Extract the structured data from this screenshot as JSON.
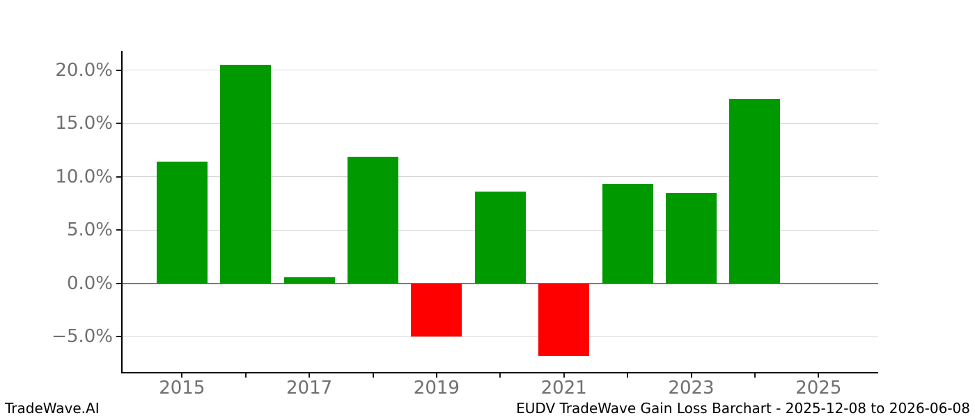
{
  "chart_data": {
    "type": "bar",
    "title": "EUDV TradeWave Gain Loss Barchart - 2025-12-08 to 2026-06-08",
    "categories": [
      "2015",
      "2016",
      "2017",
      "2018",
      "2019",
      "2020",
      "2021",
      "2022",
      "2023",
      "2024"
    ],
    "values": [
      11.4,
      20.5,
      0.6,
      11.9,
      -5.0,
      8.6,
      -6.8,
      9.3,
      8.5,
      17.3
    ],
    "unit": "%",
    "ylim": [
      -8.3,
      21.8
    ],
    "y_ticks": [
      {
        "value": 20,
        "label": "20.0%"
      },
      {
        "value": 15,
        "label": "15.0%"
      },
      {
        "value": 10,
        "label": "10.0%"
      },
      {
        "value": 5,
        "label": "5.0%"
      },
      {
        "value": 0,
        "label": "0.0%"
      },
      {
        "value": -5,
        "label": "−5.0%"
      }
    ],
    "x_ticks_all_years": [
      "2015",
      "2016",
      "2017",
      "2018",
      "2019",
      "2020",
      "2021",
      "2022",
      "2023",
      "2024",
      "2025"
    ],
    "x_tick_labels": [
      "2015",
      "2017",
      "2019",
      "2021",
      "2023",
      "2025"
    ],
    "grid": "horizontal",
    "legend": "none",
    "positive_color": "#009a00",
    "negative_color": "#ff0000"
  },
  "footer": {
    "brand": "TradeWave.AI",
    "caption": "EUDV TradeWave Gain Loss Barchart - 2025-12-08 to 2026-06-08"
  },
  "colors": {
    "background": "#ffffff",
    "grid_line": "#d5d5d5",
    "zero_line": "#7a7a7a",
    "axis_line": "#000000",
    "tick_label": "#707070",
    "footer_text": "#000000"
  }
}
